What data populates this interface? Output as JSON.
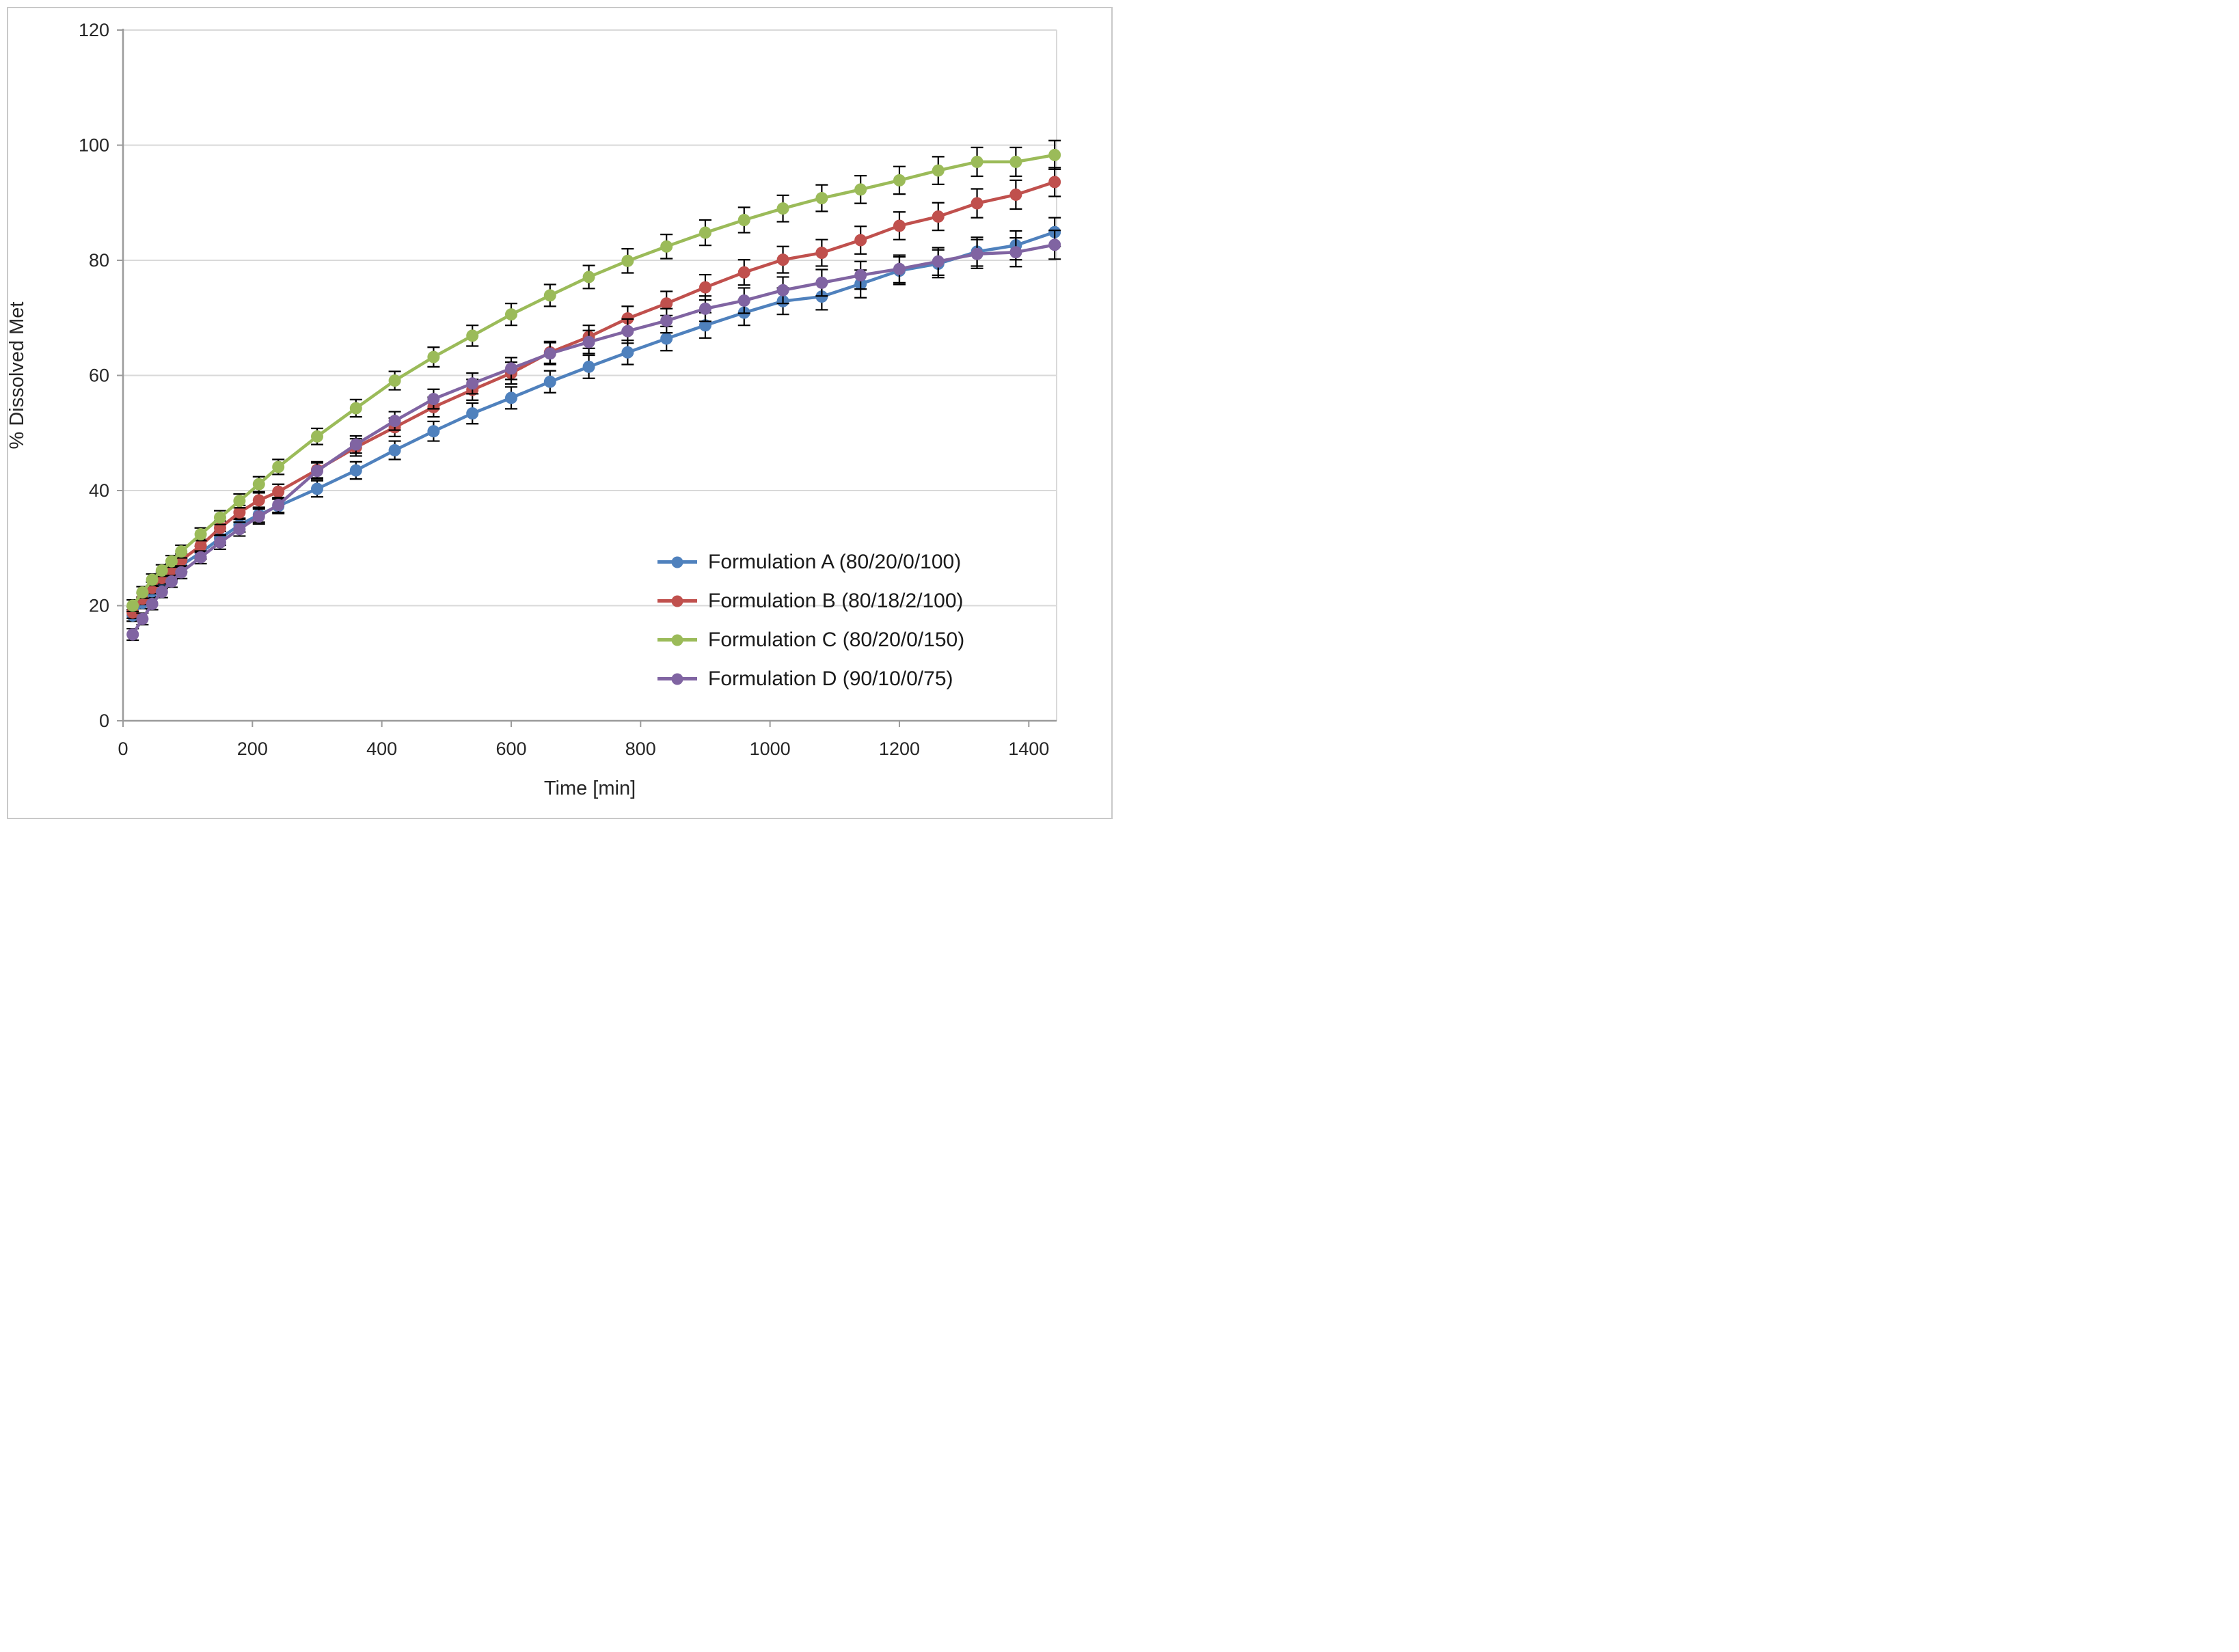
{
  "figure": {
    "background": "#FFFFFF",
    "border_color": "#C9C9C9"
  },
  "chart_data": {
    "type": "line",
    "title": "",
    "xlabel": "Time [min]",
    "ylabel": "% Dissolved Met",
    "x": [
      15,
      30,
      45,
      60,
      75,
      90,
      120,
      150,
      180,
      210,
      240,
      300,
      360,
      420,
      480,
      540,
      600,
      660,
      720,
      780,
      840,
      900,
      960,
      1020,
      1080,
      1140,
      1200,
      1260,
      1320,
      1380,
      1440
    ],
    "xlim": [
      0,
      1443
    ],
    "ylim": [
      0,
      120
    ],
    "x_ticks": [
      0,
      200,
      400,
      600,
      800,
      1000,
      1200,
      1400
    ],
    "y_ticks": [
      0,
      20,
      40,
      60,
      80,
      100,
      120
    ],
    "grid": "horizontal",
    "legend_position": "inside-lower-right",
    "marker": "circle",
    "error_bars": [
      1.0,
      1.0,
      1.0,
      1.0,
      1.0,
      1.1,
      1.1,
      1.2,
      1.2,
      1.3,
      1.3,
      1.4,
      1.5,
      1.6,
      1.7,
      1.8,
      1.9,
      1.9,
      2.0,
      2.1,
      2.1,
      2.2,
      2.2,
      2.3,
      2.3,
      2.4,
      2.4,
      2.4,
      2.5,
      2.5,
      2.5
    ],
    "series": [
      {
        "name": "Formulation A (80/20/0/100)",
        "color": "#4F81BD",
        "values": [
          18.3,
          20.5,
          22.5,
          24.0,
          25.5,
          27.0,
          29.2,
          31.7,
          34.0,
          35.8,
          37.3,
          40.3,
          43.5,
          47.0,
          50.3,
          53.4,
          56.1,
          58.9,
          61.5,
          64.0,
          66.4,
          68.7,
          70.9,
          72.9,
          73.7,
          75.9,
          78.2,
          79.4,
          81.5,
          82.6,
          84.9
        ]
      },
      {
        "name": "Formulation B (80/18/2/100)",
        "color": "#C0504D",
        "values": [
          18.8,
          21.2,
          23.1,
          24.8,
          26.3,
          27.9,
          30.4,
          33.5,
          36.2,
          38.3,
          39.8,
          43.6,
          47.5,
          51.0,
          54.5,
          57.5,
          60.4,
          64.0,
          66.7,
          69.9,
          72.5,
          75.3,
          77.9,
          80.1,
          81.3,
          83.5,
          86.0,
          87.6,
          89.9,
          91.4,
          93.6
        ]
      },
      {
        "name": "Formulation C (80/20/0/150)",
        "color": "#9BBB59",
        "values": [
          20.0,
          22.3,
          24.5,
          26.1,
          27.7,
          29.4,
          32.4,
          35.3,
          38.2,
          41.1,
          44.1,
          49.4,
          54.3,
          59.1,
          63.2,
          66.9,
          70.6,
          73.9,
          77.1,
          79.9,
          82.4,
          84.8,
          87.0,
          89.0,
          90.8,
          92.3,
          93.9,
          95.6,
          97.1,
          97.1,
          98.3
        ]
      },
      {
        "name": "Formulation D (90/10/0/75)",
        "color": "#8064A2",
        "values": [
          15.0,
          17.7,
          20.3,
          22.4,
          24.2,
          25.8,
          28.4,
          31.0,
          33.3,
          35.5,
          37.5,
          43.4,
          48.0,
          52.1,
          55.9,
          58.6,
          61.2,
          63.8,
          65.8,
          67.7,
          69.5,
          71.6,
          73.0,
          74.8,
          76.1,
          77.4,
          78.5,
          79.8,
          81.1,
          81.4,
          82.7
        ]
      }
    ],
    "style": {
      "grid_color": "#D9D9D9",
      "axis_color": "#9B9B9B",
      "error_bar_color": "#000000",
      "text_color": "#262626",
      "line_width": 4.5,
      "marker_radius": 9
    }
  }
}
